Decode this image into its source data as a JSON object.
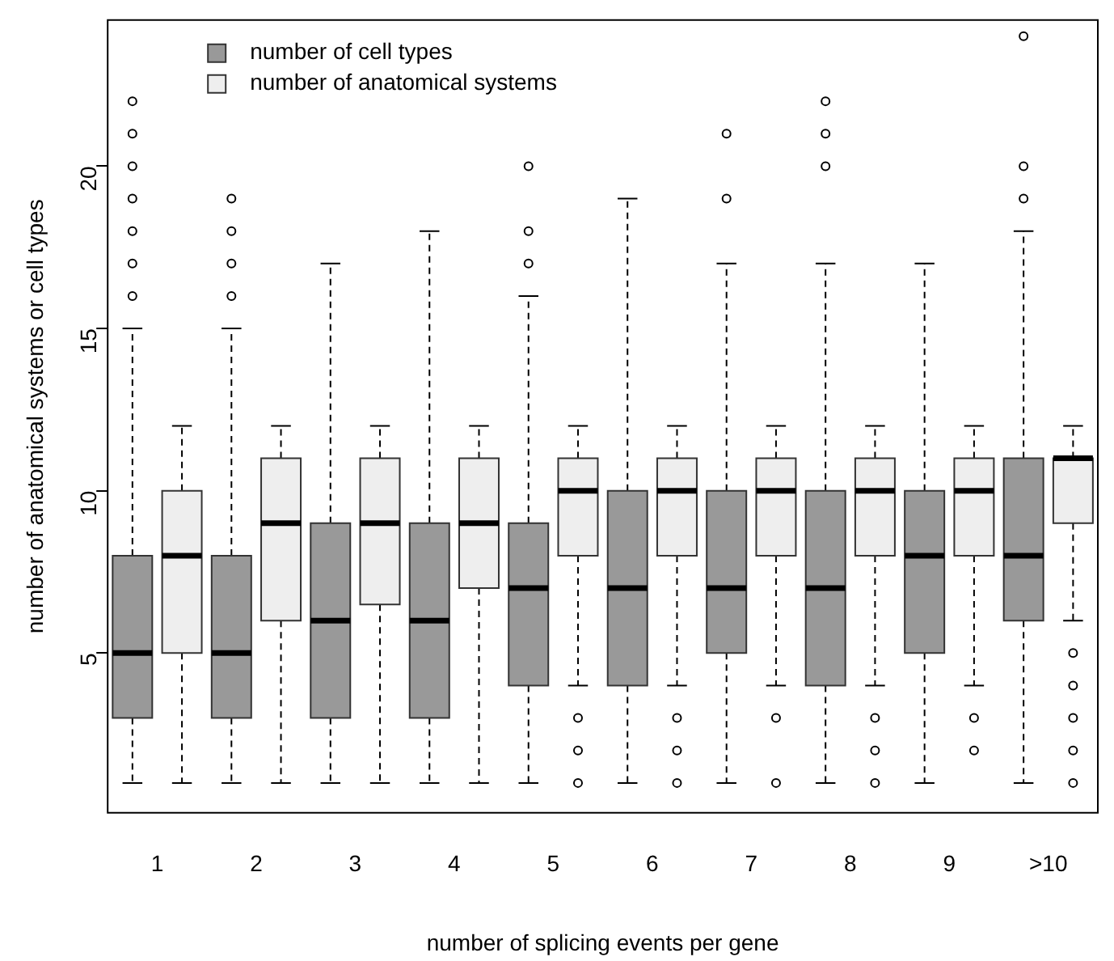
{
  "chart_data": {
    "type": "box",
    "xlabel": "number of splicing events per gene",
    "ylabel": "number of anatomical systems or cell types",
    "categories": [
      "1",
      "2",
      "3",
      "4",
      "5",
      "6",
      "7",
      "8",
      "9",
      ">10"
    ],
    "ylim": [
      0.08,
      24.5
    ],
    "yticks": [
      5,
      10,
      15,
      20
    ],
    "legend": "top left",
    "series": [
      {
        "name": "number of cell types",
        "color": "#999999",
        "boxes": [
          {
            "low": 1,
            "q1": 3,
            "median": 5,
            "q3": 8,
            "high": 15,
            "outliers": [
              16,
              17,
              18,
              19,
              20,
              21,
              22
            ]
          },
          {
            "low": 1,
            "q1": 3,
            "median": 5,
            "q3": 8,
            "high": 15,
            "outliers": [
              16,
              17,
              18,
              19
            ]
          },
          {
            "low": 1,
            "q1": 3,
            "median": 6,
            "q3": 9,
            "high": 17
          },
          {
            "low": 1,
            "q1": 3,
            "median": 6,
            "q3": 9,
            "high": 18
          },
          {
            "low": 1,
            "q1": 4,
            "median": 7,
            "q3": 9,
            "high": 16,
            "outliers": [
              17,
              18,
              20
            ]
          },
          {
            "low": 1,
            "q1": 4,
            "median": 7,
            "q3": 10,
            "high": 19
          },
          {
            "low": 1,
            "q1": 5,
            "median": 7,
            "q3": 10,
            "high": 17,
            "outliers": [
              19,
              21
            ]
          },
          {
            "low": 1,
            "q1": 4,
            "median": 7,
            "q3": 10,
            "high": 17,
            "outliers": [
              20,
              21,
              22
            ]
          },
          {
            "low": 1,
            "q1": 5,
            "median": 8,
            "q3": 10,
            "high": 17
          },
          {
            "low": 1,
            "q1": 6,
            "median": 8,
            "q3": 11,
            "high": 18,
            "outliers": [
              19,
              20,
              24
            ]
          }
        ]
      },
      {
        "name": "number of anatomical systems",
        "color": "#eeeeee",
        "boxes": [
          {
            "low": 1,
            "q1": 5,
            "median": 8,
            "q3": 10,
            "high": 12
          },
          {
            "low": 1,
            "q1": 6,
            "median": 9,
            "q3": 11,
            "high": 12
          },
          {
            "low": 1,
            "q1": 6.5,
            "median": 9,
            "q3": 11,
            "high": 12
          },
          {
            "low": 1,
            "q1": 7,
            "median": 9,
            "q3": 11,
            "high": 12
          },
          {
            "low": 4,
            "q1": 8,
            "median": 10,
            "q3": 11,
            "high": 12,
            "outliers": [
              1,
              2,
              3
            ]
          },
          {
            "low": 4,
            "q1": 8,
            "median": 10,
            "q3": 11,
            "high": 12,
            "outliers": [
              1,
              2,
              3
            ]
          },
          {
            "low": 4,
            "q1": 8,
            "median": 10,
            "q3": 11,
            "high": 12,
            "outliers": [
              1,
              3
            ]
          },
          {
            "low": 4,
            "q1": 8,
            "median": 10,
            "q3": 11,
            "high": 12,
            "outliers": [
              1,
              2,
              3
            ]
          },
          {
            "low": 4,
            "q1": 8,
            "median": 10,
            "q3": 11,
            "high": 12,
            "outliers": [
              2,
              3
            ]
          },
          {
            "low": 6,
            "q1": 9,
            "median": 11,
            "q3": 11,
            "high": 12,
            "outliers": [
              1,
              2,
              3,
              4,
              5
            ]
          }
        ]
      }
    ]
  }
}
